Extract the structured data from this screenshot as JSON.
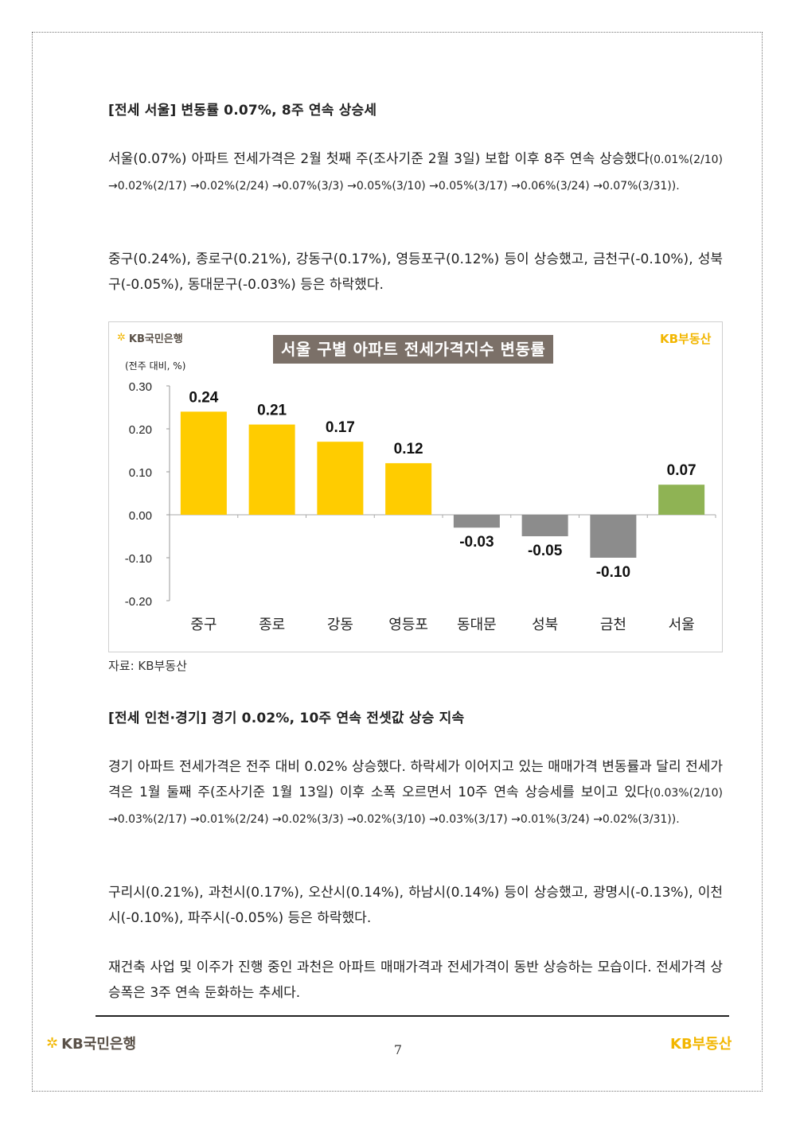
{
  "section1": {
    "heading": "[전세 서울] 변동률 0.07%, 8주 연속 상승세",
    "p1_main": "서울(0.07%) 아파트 전세가격은 2월 첫째 주(조사기준 2월 3일) 보합 이후 8주 연속 상승했다",
    "p1_small": "(0.01%(2/10) →0.02%(2/17) →0.02%(2/24) →0.07%(3/3) →0.05%(3/10) →0.05%(3/17) →0.06%(3/24) →0.07%(3/31)).",
    "p2": "중구(0.24%), 종로구(0.21%), 강동구(0.17%), 영등포구(0.12%) 등이 상승했고, 금천구(-0.10%), 성북구(-0.05%), 동대문구(-0.03%) 등은 하락했다."
  },
  "chart_header": {
    "bank_logo": "KB국민은행",
    "title": "서울 구별 아파트 전세가격지수 변동률",
    "brand": "KB부동산",
    "unit": "(전주 대비, %)"
  },
  "chart_data": {
    "type": "bar",
    "title": "서울 구별 아파트 전세가격지수 변동률",
    "ylabel": "(전주 대비, %)",
    "ylim": [
      -0.2,
      0.3
    ],
    "yticks": [
      "0.30",
      "0.20",
      "0.10",
      "0.00",
      "-0.10",
      "-0.20"
    ],
    "ytick_values": [
      0.3,
      0.2,
      0.1,
      0.0,
      -0.1,
      -0.2
    ],
    "categories": [
      "중구",
      "종로",
      "강동",
      "영등포",
      "동대문",
      "성북",
      "금천",
      "서울"
    ],
    "values": [
      0.24,
      0.21,
      0.17,
      0.12,
      -0.03,
      -0.05,
      -0.1,
      0.07
    ],
    "value_labels": [
      "0.24",
      "0.21",
      "0.17",
      "0.12",
      "-0.03",
      "-0.05",
      "-0.10",
      "0.07"
    ],
    "colors": [
      "#ffcc00",
      "#ffcc00",
      "#ffcc00",
      "#ffcc00",
      "#8c8c8c",
      "#8c8c8c",
      "#8c8c8c",
      "#8fb354"
    ],
    "grid": false,
    "legend": "none"
  },
  "source": "자료: KB부동산",
  "section2": {
    "heading": "[전세 인천·경기] 경기 0.02%, 10주 연속 전셋값 상승 지속",
    "p1_main": "경기 아파트 전세가격은 전주 대비 0.02% 상승했다. 하락세가 이어지고 있는 매매가격 변동률과 달리 전세가격은 1월 둘째 주(조사기준 1월 13일) 이후 소폭 오르면서 10주 연속 상승세를 보이고 있다",
    "p1_small": "(0.03%(2/10) →0.03%(2/17) →0.01%(2/24) →0.02%(3/3) →0.02%(3/10) →0.03%(3/17) →0.01%(3/24) →0.02%(3/31)).",
    "p2": "구리시(0.21%), 과천시(0.17%), 오산시(0.14%), 하남시(0.14%) 등이 상승했고, 광명시(-0.13%), 이천시(-0.10%), 파주시(-0.05%) 등은 하락했다.",
    "p3": "재건축 사업 및 이주가 진행 중인 과천은 아파트 매매가격과 전세가격이 동반 상승하는 모습이다. 전세가격 상승폭은 3주 연속 둔화하는 추세다."
  },
  "footer": {
    "bank_logo": "KB국민은행",
    "page_number": "7",
    "brand": "KB부동산"
  }
}
